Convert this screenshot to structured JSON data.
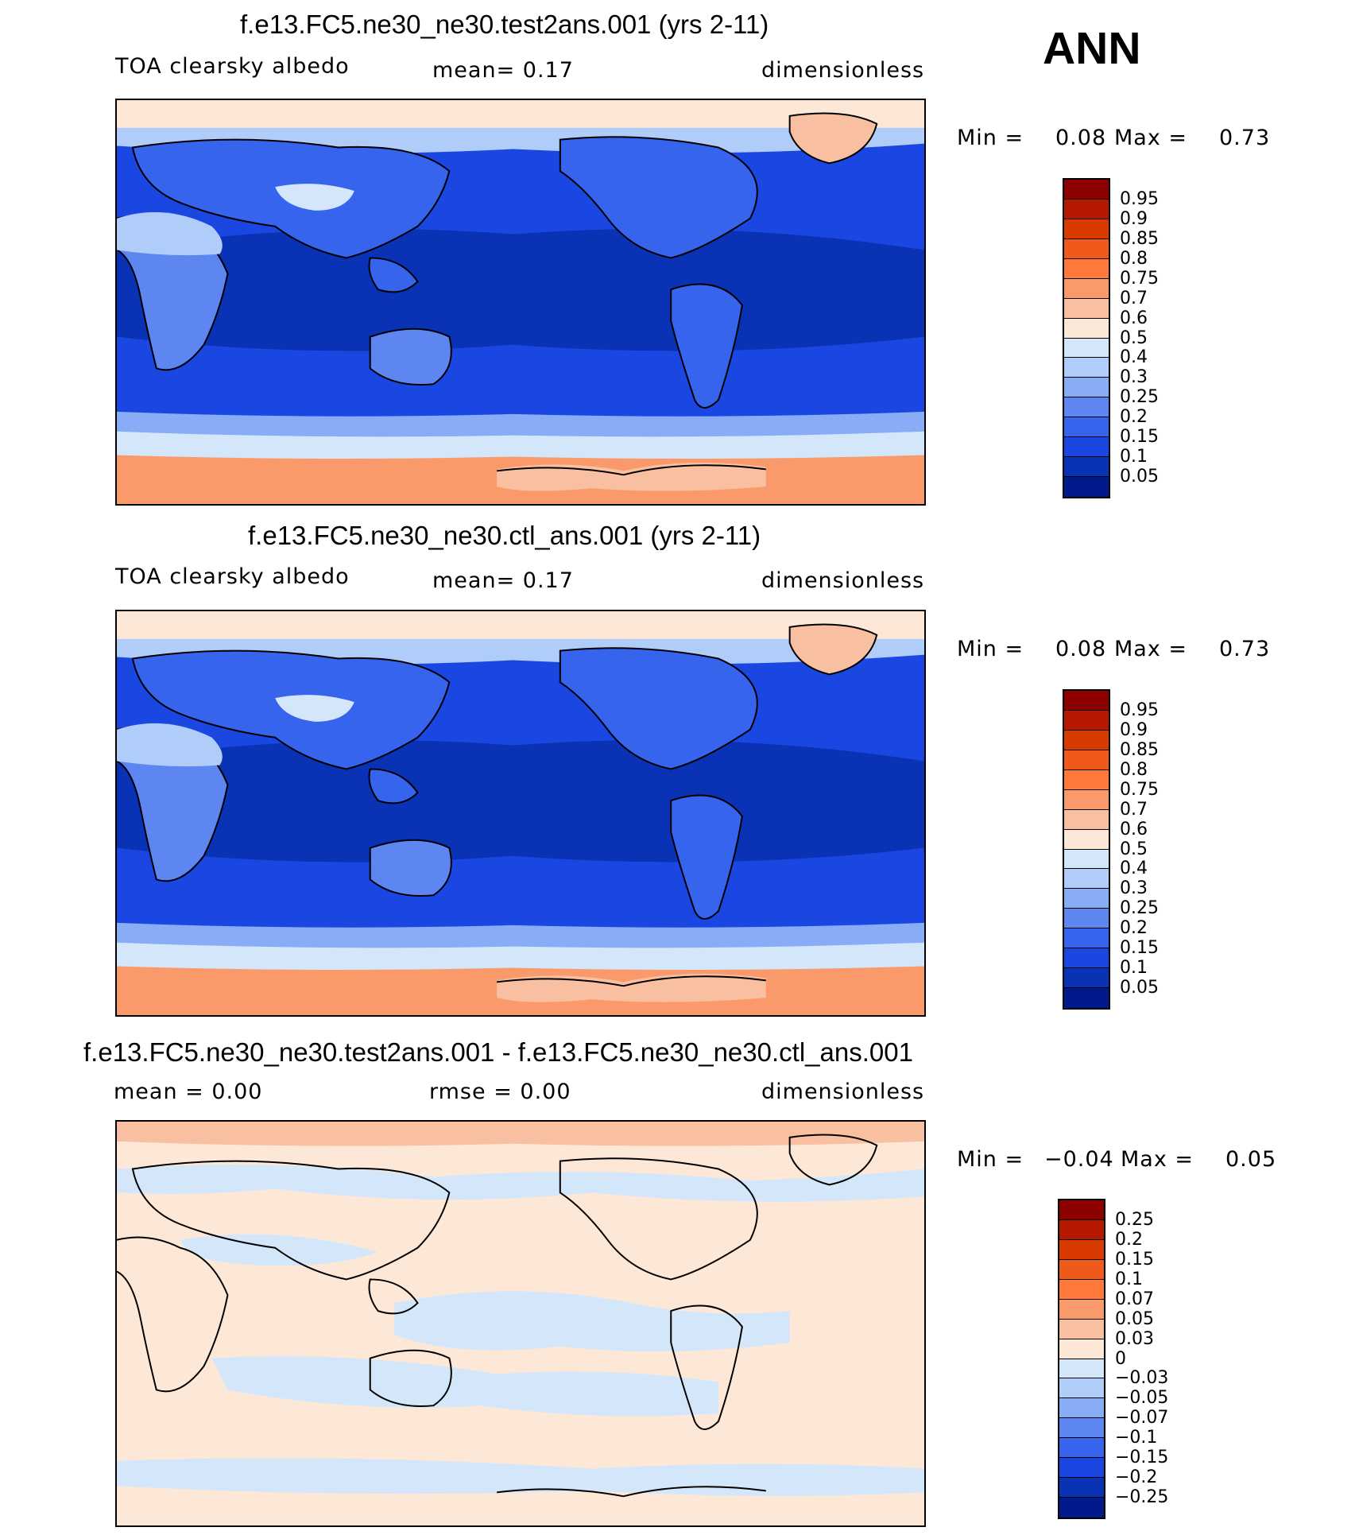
{
  "season": "ANN",
  "panels": [
    {
      "title": "f.e13.FC5.ne30_ne30.test2ans.001 (yrs 2-11)",
      "left_label": "TOA clearsky albedo",
      "center_label": "mean=    0.17",
      "units": "dimensionless",
      "min_label": "Min =",
      "min_value": "0.08",
      "max_label": "Max =",
      "max_value": "0.73",
      "field_min": 0.08,
      "field_max": 0.73,
      "colorbar": {
        "labels": [
          "0.95",
          "0.9",
          "0.85",
          "0.8",
          "0.75",
          "0.7",
          "0.6",
          "0.5",
          "0.4",
          "0.3",
          "0.25",
          "0.2",
          "0.15",
          "0.1",
          "0.05"
        ],
        "colors": [
          "#8c0000",
          "#b51a00",
          "#d83a00",
          "#ef5a1a",
          "#ff7a3a",
          "#fa9a6a",
          "#f8c0a0",
          "#fde8d8",
          "#d4e6fa",
          "#b0ccf8",
          "#88acf6",
          "#5e86f0",
          "#3664ec",
          "#1a46e2",
          "#0a32b4",
          "#001a8c"
        ]
      }
    },
    {
      "title": "f.e13.FC5.ne30_ne30.ctl_ans.001 (yrs 2-11)",
      "left_label": "TOA clearsky albedo",
      "center_label": "mean=    0.17",
      "units": "dimensionless",
      "min_label": "Min =",
      "min_value": "0.08",
      "max_label": "Max =",
      "max_value": "0.73",
      "field_min": 0.08,
      "field_max": 0.73,
      "colorbar": {
        "labels": [
          "0.95",
          "0.9",
          "0.85",
          "0.8",
          "0.75",
          "0.7",
          "0.6",
          "0.5",
          "0.4",
          "0.3",
          "0.25",
          "0.2",
          "0.15",
          "0.1",
          "0.05"
        ],
        "colors": [
          "#8c0000",
          "#b51a00",
          "#d83a00",
          "#ef5a1a",
          "#ff7a3a",
          "#fa9a6a",
          "#f8c0a0",
          "#fde8d8",
          "#d4e6fa",
          "#b0ccf8",
          "#88acf6",
          "#5e86f0",
          "#3664ec",
          "#1a46e2",
          "#0a32b4",
          "#001a8c"
        ]
      }
    },
    {
      "title": "f.e13.FC5.ne30_ne30.test2ans.001 - f.e13.FC5.ne30_ne30.ctl_ans.001",
      "left_label": "mean =    0.00",
      "center_label": "rmse =    0.00",
      "units": "dimensionless",
      "min_label": "Min =",
      "min_value": "−0.04",
      "max_label": "Max =",
      "max_value": "0.05",
      "field_min": -0.04,
      "field_max": 0.05,
      "colorbar": {
        "labels": [
          "0.25",
          "0.2",
          "0.15",
          "0.1",
          "0.07",
          "0.05",
          "0.03",
          "0",
          "−0.03",
          "−0.05",
          "−0.07",
          "−0.1",
          "−0.15",
          "−0.2",
          "−0.25"
        ],
        "colors": [
          "#8c0000",
          "#b51a00",
          "#d83a00",
          "#ef5a1a",
          "#ff7a3a",
          "#fa9a6a",
          "#f8c0a0",
          "#fde8d8",
          "#d4e6fa",
          "#b0ccf8",
          "#88acf6",
          "#5e86f0",
          "#3664ec",
          "#1a46e2",
          "#0a32b4",
          "#001a8c"
        ]
      }
    }
  ]
}
